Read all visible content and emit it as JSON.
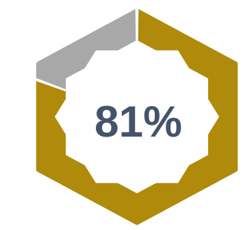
{
  "chart_data": {
    "type": "pie",
    "title": "",
    "center_label": "81%",
    "slices": [
      {
        "value": 81,
        "color": "#b08a0b"
      },
      {
        "value": 19,
        "color": "#a8a8a8"
      }
    ]
  },
  "colors": {
    "center_text": "#44546a",
    "background": "#ffffff"
  }
}
